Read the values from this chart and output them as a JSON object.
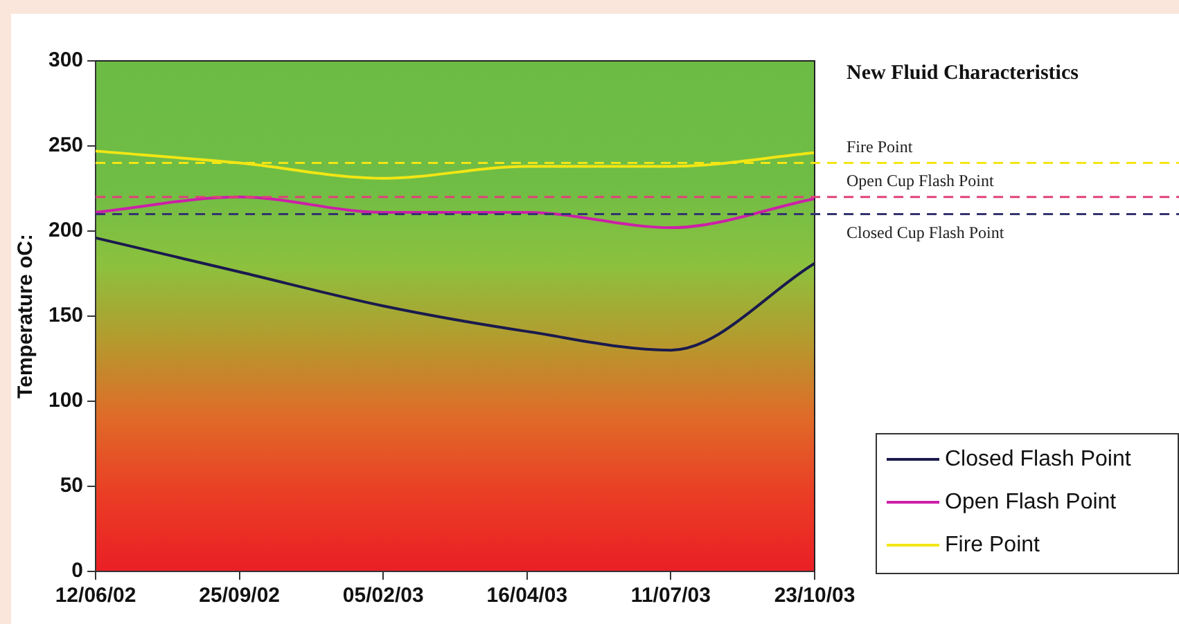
{
  "chart_data": {
    "type": "line",
    "ylabel": "Temperature oC:",
    "categories": [
      "12/06/02",
      "25/09/02",
      "05/02/03",
      "16/04/03",
      "11/07/03",
      "23/10/03"
    ],
    "series": [
      {
        "name": "Closed Flash Point",
        "color": "#1a1a4e",
        "values": [
          196,
          176,
          156,
          141,
          130,
          181
        ]
      },
      {
        "name": "Open Flash Point",
        "color": "#cc1fa8",
        "values": [
          211,
          220,
          211,
          211,
          202,
          219
        ]
      },
      {
        "name": "Fire Point",
        "color": "#f2e614",
        "values": [
          247,
          240,
          231,
          238,
          238,
          246
        ]
      }
    ],
    "ylim": [
      0,
      300
    ],
    "yticks": [
      0,
      50,
      100,
      150,
      200,
      250,
      300
    ],
    "grid": false,
    "legend": "bottom right",
    "marker": "none",
    "line_style": "solid",
    "ref_lines": [
      {
        "axis": "y",
        "value": 240,
        "label": "Fire Point",
        "color": "#f2e614",
        "line_style": "dashed"
      },
      {
        "axis": "y",
        "value": 220,
        "label": "Open Cup Flash Point",
        "color": "#e0407a",
        "line_style": "dashed"
      },
      {
        "axis": "y",
        "value": 210,
        "label": "Closed Cup Flash Point",
        "color": "#33336e",
        "line_style": "dashed"
      }
    ],
    "annotations": [
      "New Fluid Characteristics"
    ]
  }
}
